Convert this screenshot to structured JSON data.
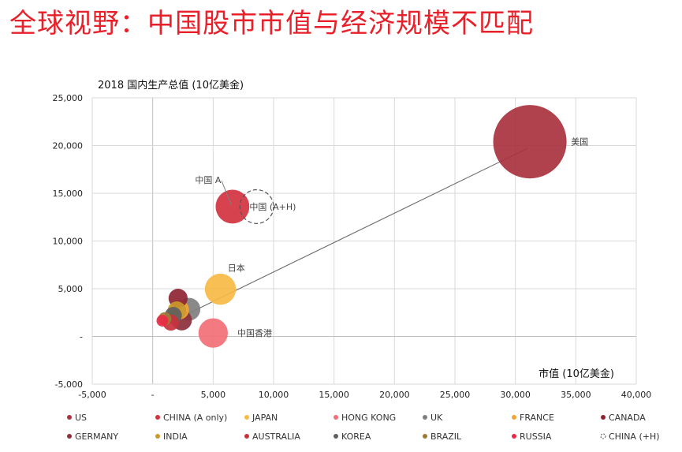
{
  "slide": {
    "title": "全球视野：中国股市市值与经济规模不匹配"
  },
  "chart_data": {
    "type": "scatter",
    "subtype": "bubble",
    "title": "",
    "ylabel": "2018 国内生产总值 (10亿美金)",
    "xlabel": "市值 (10亿美金)",
    "xlim": [
      -5000,
      40000
    ],
    "ylim": [
      -5000,
      25000
    ],
    "x_ticks": [
      {
        "v": -5000,
        "label": "-5,000"
      },
      {
        "v": 0,
        "label": "-"
      },
      {
        "v": 5000,
        "label": "5,000"
      },
      {
        "v": 10000,
        "label": "10,000"
      },
      {
        "v": 15000,
        "label": "15,000"
      },
      {
        "v": 20000,
        "label": "20,000"
      },
      {
        "v": 25000,
        "label": "25,000"
      },
      {
        "v": 30000,
        "label": "30,000"
      },
      {
        "v": 35000,
        "label": "35,000"
      },
      {
        "v": 40000,
        "label": "40,000"
      }
    ],
    "y_ticks": [
      {
        "v": -5000,
        "label": "-5,000"
      },
      {
        "v": 0,
        "label": "-"
      },
      {
        "v": 5000,
        "label": "5,000"
      },
      {
        "v": 10000,
        "label": "10,000"
      },
      {
        "v": 15000,
        "label": "15,000"
      },
      {
        "v": 20000,
        "label": "20,000"
      },
      {
        "v": 25000,
        "label": "25,000"
      }
    ],
    "grid": true,
    "legend_position": "bottom",
    "trendline": {
      "x1": 1000,
      "y1": 1200,
      "x2": 31000,
      "y2": 19700,
      "color": "#6b6b6b"
    },
    "series": [
      {
        "name": "US",
        "x": 31200,
        "y": 20400,
        "size": 31200,
        "color": "#a8323e"
      },
      {
        "name": "CHINA (A only)",
        "x": 6600,
        "y": 13600,
        "size": 6600,
        "color": "#d2323f"
      },
      {
        "name": "JAPAN",
        "x": 5600,
        "y": 4950,
        "size": 5600,
        "color": "#f7bb45"
      },
      {
        "name": "HONG KONG",
        "x": 5000,
        "y": 360,
        "size": 5000,
        "color": "#f36f77"
      },
      {
        "name": "UK",
        "x": 3000,
        "y": 2850,
        "size": 3000,
        "color": "#7f7f7f"
      },
      {
        "name": "FRANCE",
        "x": 2200,
        "y": 2800,
        "size": 2200,
        "color": "#f2a437"
      },
      {
        "name": "CANADA",
        "x": 2100,
        "y": 4000,
        "size": 2100,
        "color": "#8e2432"
      },
      {
        "name": "GERMANY",
        "x": 2400,
        "y": 1700,
        "size": 2400,
        "color": "#8b2f3a"
      },
      {
        "name": "INDIA",
        "x": 2000,
        "y": 2700,
        "size": 2000,
        "color": "#c99a2e"
      },
      {
        "name": "AUSTRALIA",
        "x": 1500,
        "y": 1450,
        "size": 1500,
        "color": "#c8323d"
      },
      {
        "name": "KOREA",
        "x": 1700,
        "y": 2200,
        "size": 1700,
        "color": "#5f5f5f"
      },
      {
        "name": "BRAZIL",
        "x": 1000,
        "y": 1850,
        "size": 1000,
        "color": "#9e7a36"
      },
      {
        "name": "RUSSIA",
        "x": 800,
        "y": 1650,
        "size": 800,
        "color": "#ea2a45"
      },
      {
        "name": "CHINA (+H)",
        "x": 8600,
        "y": 13600,
        "size": 6600,
        "color": "#555555",
        "dashed": true
      }
    ],
    "annotations": [
      {
        "text": "美国",
        "x": 34600,
        "y": 20400,
        "anchor": "start"
      },
      {
        "text": "中国 A",
        "x": 3500,
        "y": 16400,
        "anchor": "start"
      },
      {
        "text": "中国 (A+H)",
        "x": 8000,
        "y": 13600,
        "anchor": "start"
      },
      {
        "text": "日本",
        "x": 6200,
        "y": 7200,
        "anchor": "start"
      },
      {
        "text": "中国香港",
        "x": 7000,
        "y": 360,
        "anchor": "start"
      }
    ],
    "leader_lines": [
      {
        "x1": 5700,
        "y1": 16300,
        "x2": 6500,
        "y2": 13800
      }
    ]
  }
}
